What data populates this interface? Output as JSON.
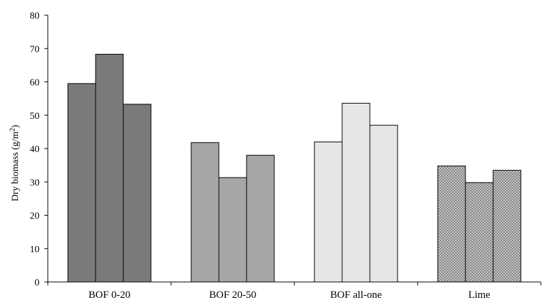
{
  "chart_data": {
    "type": "bar",
    "title": "",
    "xlabel": "",
    "ylabel": "Dry biomass (g/m²)",
    "ylabel_parts": {
      "main": "Dry biomass (g/m",
      "sup": "2",
      "end": ")"
    },
    "ylim": [
      0,
      80
    ],
    "yticks": [
      0,
      10,
      20,
      30,
      40,
      50,
      60,
      70,
      80
    ],
    "yticks_text": [
      "0",
      "10",
      "20",
      "30",
      "40",
      "50",
      "60",
      "70",
      "80"
    ],
    "grid": false,
    "legend": "none",
    "categories": [
      "BOF 0-20",
      "BOF 20-50",
      "BOF all-one",
      "Lime"
    ],
    "groups": [
      {
        "category": "BOF 0-20",
        "values": [
          59.5,
          68.3,
          53.3
        ],
        "fill": "#7a7a7a",
        "pattern": "solid"
      },
      {
        "category": "BOF 20-50",
        "values": [
          41.8,
          31.3,
          38.0
        ],
        "fill": "#a6a6a6",
        "pattern": "solid"
      },
      {
        "category": "BOF all-one",
        "values": [
          42.0,
          53.6,
          47.0
        ],
        "fill": "#e6e6e6",
        "pattern": "solid"
      },
      {
        "category": "Lime",
        "values": [
          34.8,
          29.8,
          33.5
        ],
        "fill": "#bdbdbd",
        "pattern": "crosshatch"
      }
    ]
  }
}
